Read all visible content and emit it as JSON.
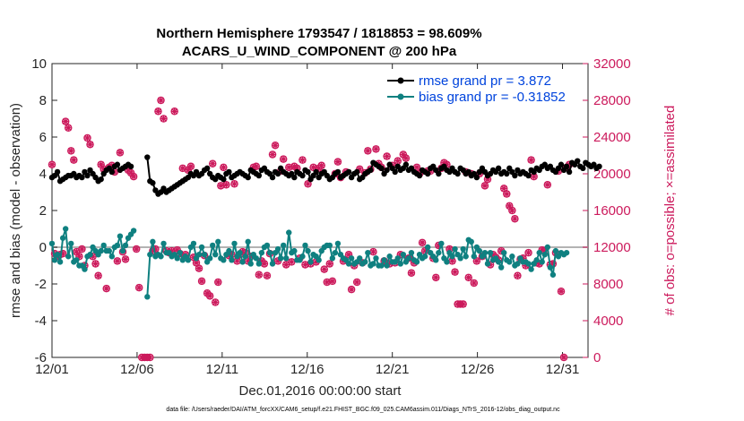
{
  "chart_data": {
    "type": "line",
    "title_line1": "Northern Hemisphere 1793547 / 1818853 = 98.609%",
    "title_line2": "ACARS_U_WIND_COMPONENT @ 200 hPa",
    "xlabel": "Dec.01,2016 00:00:00 start",
    "ylabel": "rmse and bias (model - observation)",
    "ylabel_right": "# of obs: o=possible; ×=assimilated",
    "xlim": [
      0,
      31.5
    ],
    "ylim": [
      -6,
      10
    ],
    "ylim_right": [
      0,
      32000
    ],
    "x_ticks": [
      0,
      5,
      10,
      15,
      20,
      25,
      30
    ],
    "x_tick_labels": [
      "12/01",
      "12/06",
      "12/11",
      "12/16",
      "12/21",
      "12/26",
      "12/31"
    ],
    "y_ticks": [
      -6,
      -4,
      -2,
      0,
      2,
      4,
      6,
      8,
      10
    ],
    "y_tick_labels": [
      "-6",
      "-4",
      "-2",
      "0",
      "2",
      "4",
      "6",
      "8",
      "10"
    ],
    "y_right_ticks": [
      0,
      4000,
      8000,
      12000,
      16000,
      20000,
      24000,
      28000,
      32000
    ],
    "y_right_tick_labels": [
      "0",
      "4000",
      "8000",
      "12000",
      "16000",
      "20000",
      "24000",
      "28000",
      "32000"
    ],
    "footnote": "data file: /Users/raeder/DAI/ATM_forcXX/CAM6_setup/f.e21.FHIST_BGC.f09_025.CAM6assim.011/Diags_NTrS_2016-12/obs_diag_output.nc",
    "series": [
      {
        "name": "rmse",
        "legend_label": "rmse grand pr = 3.872",
        "color": "#000000",
        "values": [
          3.8,
          3.9,
          4.1,
          3.6,
          3.7,
          3.8,
          3.9,
          3.9,
          4.0,
          3.8,
          3.9,
          3.8,
          4.1,
          3.9,
          4.2,
          4.0,
          3.8,
          3.6,
          3.7,
          4.0,
          4.2,
          4.3,
          4.1,
          4.4,
          4.5,
          4.2,
          4.3,
          4.4,
          4.5,
          4.4,
          null,
          null,
          null,
          null,
          null,
          4.9,
          3.6,
          3.5,
          3.1,
          2.9,
          3.0,
          3.2,
          3.0,
          3.1,
          3.2,
          3.3,
          3.4,
          3.5,
          3.6,
          3.7,
          3.8,
          4.0,
          3.9,
          4.1,
          3.9,
          4.0,
          4.2,
          4.3,
          4.0,
          3.8,
          3.7,
          3.9,
          3.8,
          3.7,
          4.0,
          4.1,
          3.8,
          3.9,
          4.0,
          4.1,
          4.0,
          3.9,
          3.8,
          4.2,
          4.1,
          4.0,
          3.9,
          4.2,
          4.3,
          4.1,
          4.0,
          3.8,
          4.1,
          4.0,
          4.3,
          4.1,
          4.0,
          3.9,
          4.0,
          3.8,
          4.1,
          4.0,
          3.9,
          4.2,
          4.1,
          3.7,
          3.9,
          4.1,
          3.8,
          4.0,
          4.1,
          3.9,
          3.7,
          3.8,
          4.0,
          4.1,
          3.8,
          3.9,
          4.0,
          4.1,
          3.8,
          4.0,
          4.1,
          3.7,
          3.8,
          4.0,
          4.1,
          4.2,
          4.6,
          4.5,
          4.4,
          4.3,
          4.0,
          4.2,
          4.5,
          4.3,
          4.1,
          4.4,
          4.2,
          4.3,
          4.5,
          4.2,
          4.3,
          4.1,
          4.0,
          3.9,
          4.2,
          4.1,
          4.0,
          4.3,
          4.4,
          4.2,
          4.0,
          4.3,
          4.4,
          4.2,
          4.1,
          4.3,
          4.1,
          4.0,
          4.3,
          4.2,
          4.0,
          4.1,
          3.9,
          4.0,
          3.8,
          4.1,
          4.3,
          4.1,
          3.9,
          4.0,
          4.2,
          4.1,
          4.3,
          4.0,
          4.1,
          4.0,
          4.3,
          4.1,
          3.9,
          4.2,
          4.0,
          4.1,
          4.0,
          3.9,
          4.2,
          4.1,
          4.3,
          4.2,
          4.4,
          4.5,
          4.3,
          4.4,
          4.2,
          4.1,
          4.3,
          4.5,
          4.2,
          4.4,
          4.1,
          4.6,
          4.5,
          4.7,
          4.4,
          4.3,
          4.6,
          4.5,
          4.4,
          4.5,
          4.3,
          4.4
        ]
      },
      {
        "name": "bias",
        "legend_label": "bias grand pr = -0.31852",
        "color": "#0f8080",
        "values": [
          0.2,
          -0.7,
          -0.4,
          -0.8,
          0.5,
          1.0,
          -0.5,
          0.2,
          -0.8,
          -0.7,
          -1.0,
          -1.0,
          -1.2,
          -0.5,
          -0.4,
          0.0,
          -0.2,
          -0.4,
          -0.2,
          0.1,
          -0.2,
          -0.2,
          -0.5,
          0.0,
          0.1,
          0.6,
          -0.2,
          0.1,
          0.5,
          0.7,
          0.9,
          null,
          null,
          null,
          null,
          -2.7,
          -0.4,
          0.3,
          -0.5,
          -0.4,
          -0.5,
          0.2,
          -0.3,
          -0.3,
          -0.5,
          -0.4,
          -0.6,
          -0.3,
          -0.7,
          -0.5,
          -0.7,
          0.0,
          0.2,
          -0.6,
          -0.4,
          0.0,
          -0.4,
          -0.8,
          -0.6,
          0.1,
          -0.4,
          0.3,
          -0.6,
          -0.7,
          -0.4,
          -0.2,
          -0.7,
          0.2,
          -0.5,
          -0.3,
          -0.8,
          -0.5,
          0.3,
          -0.9,
          -0.4,
          -0.6,
          -0.9,
          -0.3,
          0.0,
          0.1,
          -0.3,
          -0.9,
          -0.3,
          -0.1,
          -0.6,
          0.1,
          -0.6,
          0.8,
          -0.3,
          -0.2,
          -0.7,
          -0.7,
          -0.5,
          0.1,
          -0.2,
          -0.8,
          -0.4,
          -0.5,
          -0.7,
          -0.2,
          0.0,
          0.1,
          0.1,
          -0.6,
          -0.3,
          0.2,
          -0.4,
          -0.6,
          -0.7,
          -0.9,
          -0.6,
          -0.9,
          -0.8,
          -0.6,
          -0.9,
          -0.8,
          -0.3,
          -1.0,
          -0.9,
          -0.6,
          -1.0,
          -1.0,
          -0.7,
          -1.0,
          -0.5,
          -0.8,
          -0.8,
          -0.6,
          -0.9,
          -0.4,
          -0.8,
          -0.6,
          -0.3,
          -0.7,
          -0.8,
          -0.4,
          -0.6,
          -0.5,
          0.0,
          -0.3,
          -0.5,
          -0.7,
          -0.3,
          0.2,
          -0.6,
          -0.8,
          -0.3,
          -0.5,
          -0.1,
          -0.4,
          -0.6,
          -0.1,
          -0.5,
          0.4,
          0.3,
          -0.5,
          0.0,
          -0.2,
          -0.5,
          -0.3,
          -0.9,
          -0.3,
          -0.7,
          -0.6,
          -0.8,
          -1.1,
          -0.3,
          -0.7,
          -0.8,
          -0.5,
          -1.0,
          -0.9,
          -0.6,
          -0.8,
          -0.8,
          -0.9,
          -1.2,
          -0.9,
          -0.7,
          -0.3,
          -0.8,
          -0.4,
          0.0,
          -1.1,
          -1.5,
          -0.2,
          -0.5,
          -0.3,
          -0.4,
          -0.3
        ]
      },
      {
        "name": "obs_possible",
        "legend_label": "o=possible",
        "color": "#cc1a5c",
        "values": [
          21000,
          11300,
          11000,
          11200,
          11300,
          25700,
          25000,
          22500,
          21500,
          11500,
          11000,
          11800,
          10000,
          23900,
          23200,
          11000,
          10200,
          8900,
          21000,
          20500,
          7500,
          20700,
          20900,
          20200,
          10500,
          22300,
          11500,
          10700,
          20400,
          20100,
          19700,
          11800,
          7600,
          0,
          0,
          0,
          0,
          11600,
          11800,
          26800,
          28000,
          26000,
          11600,
          11400,
          11600,
          26800,
          11700,
          11300,
          20600,
          11200,
          20400,
          20800,
          10900,
          10300,
          9700,
          8300,
          11100,
          7000,
          6700,
          21100,
          6000,
          8200,
          18700,
          20700,
          18800,
          11100,
          11200,
          18900,
          10500,
          11200,
          11500,
          11400,
          10500,
          11000,
          20700,
          20800,
          9000,
          10500,
          10200,
          8900,
          11300,
          22100,
          23100,
          10500,
          20300,
          21600,
          10100,
          20700,
          10400,
          20800,
          20600,
          10800,
          21500,
          10100,
          18900,
          10200,
          20700,
          10400,
          20600,
          20900,
          9600,
          8200,
          10200,
          8300,
          20000,
          21300,
          19600,
          10500,
          20200,
          11200,
          7400,
          10000,
          8200,
          20500,
          10300,
          20100,
          22500,
          20500,
          11500,
          22700,
          21100,
          20700,
          10500,
          21900,
          10200,
          20900,
          10300,
          21400,
          11200,
          22100,
          21700,
          10800,
          9200,
          10300,
          20700,
          20000,
          12500,
          11600,
          20300,
          20300,
          10800,
          8700,
          12200,
          20600,
          21200,
          21000,
          11800,
          10500,
          9300,
          5800,
          5800,
          5800,
          20200,
          8700,
          20000,
          8100,
          10500,
          20000,
          11000,
          18700,
          19400,
          10100,
          11200,
          10900,
          10600,
          11600,
          18400,
          17800,
          16500,
          16000,
          15100,
          8900,
          10700,
          10800,
          10000,
          11400,
          21500,
          19700,
          10300,
          10200,
          11700,
          11600,
          18800,
          10100,
          10200,
          11400,
          20300,
          7200,
          0,
          20700,
          21000
        ]
      }
    ]
  },
  "legend": {
    "rmse_label": "rmse grand pr = 3.872",
    "bias_label": "bias grand pr = -0.31852"
  }
}
